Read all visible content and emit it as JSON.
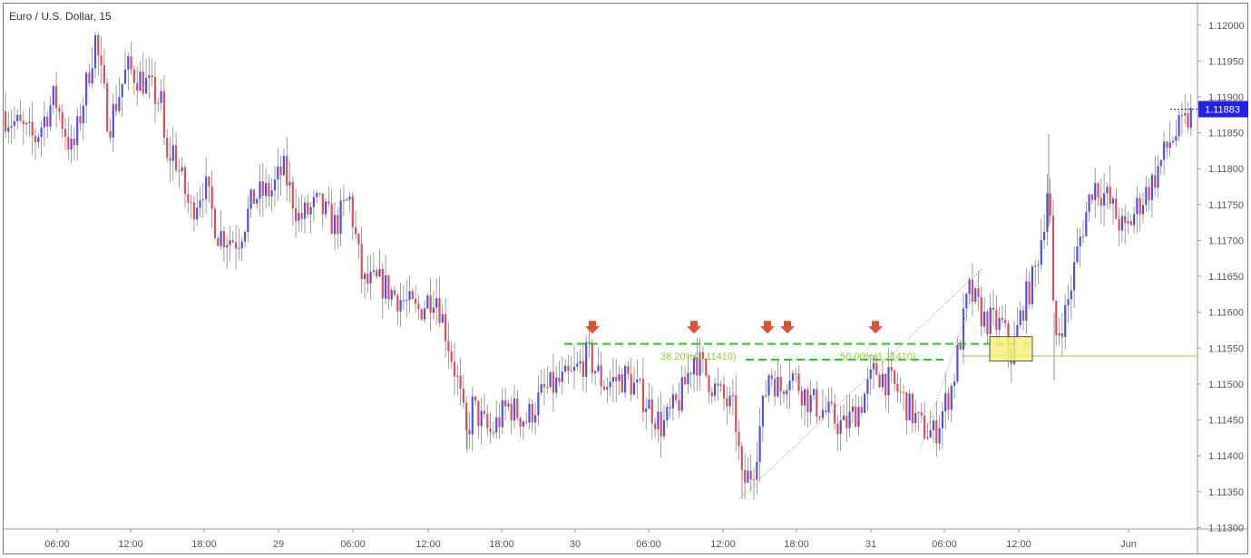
{
  "chart_data": {
    "type": "candlestick",
    "title": "Euro / U.S. Dollar, 15",
    "last_price": "1.11883",
    "y_ticks": [
      "1.12000",
      "1.11950",
      "1.11900",
      "1.11850",
      "1.11800",
      "1.11750",
      "1.11700",
      "1.11650",
      "1.11600",
      "1.11550",
      "1.11500",
      "1.11450",
      "1.11400",
      "1.11350",
      "1.11300"
    ],
    "x_ticks": [
      "06:00",
      "12:00",
      "18:00",
      "29",
      "06:00",
      "12:00",
      "18:00",
      "30",
      "06:00",
      "12:00",
      "18:00",
      "31",
      "06:00",
      "12:00",
      "Jun"
    ],
    "ylim": [
      1.11298,
      1.1203
    ],
    "price_path": [
      [
        0,
        1.1188
      ],
      [
        20,
        1.1186
      ],
      [
        38,
        1.1184
      ],
      [
        60,
        1.119
      ],
      [
        80,
        1.1182
      ],
      [
        105,
        1.1198
      ],
      [
        120,
        1.1186
      ],
      [
        140,
        1.1194
      ],
      [
        160,
        1.1192
      ],
      [
        178,
        1.1189
      ],
      [
        183,
        1.118
      ],
      [
        190,
        1.1183
      ],
      [
        210,
        1.1174
      ],
      [
        225,
        1.1178
      ],
      [
        240,
        1.1171
      ],
      [
        262,
        1.117
      ],
      [
        280,
        1.1176
      ],
      [
        300,
        1.1177
      ],
      [
        312,
        1.118
      ],
      [
        330,
        1.1173
      ],
      [
        350,
        1.1175
      ],
      [
        370,
        1.1172
      ],
      [
        385,
        1.1176
      ],
      [
        400,
        1.1164
      ],
      [
        420,
        1.1164
      ],
      [
        440,
        1.1162
      ],
      [
        460,
        1.116
      ],
      [
        480,
        1.1163
      ],
      [
        492,
        1.1157
      ],
      [
        505,
        1.115
      ],
      [
        515,
        1.1142
      ],
      [
        520,
        1.1147
      ],
      [
        540,
        1.1143
      ],
      [
        560,
        1.1147
      ],
      [
        580,
        1.1145
      ],
      [
        600,
        1.1149
      ],
      [
        630,
        1.1151
      ],
      [
        648,
        1.1154
      ],
      [
        665,
        1.115
      ],
      [
        690,
        1.1151
      ],
      [
        710,
        1.1148
      ],
      [
        730,
        1.1144
      ],
      [
        750,
        1.1148
      ],
      [
        765,
        1.1154
      ],
      [
        790,
        1.1149
      ],
      [
        810,
        1.1146
      ],
      [
        818,
        1.1136
      ],
      [
        830,
        1.1138
      ],
      [
        848,
        1.1152
      ],
      [
        860,
        1.1149
      ],
      [
        870,
        1.1152
      ],
      [
        890,
        1.1148
      ],
      [
        910,
        1.1146
      ],
      [
        930,
        1.1144
      ],
      [
        948,
        1.1147
      ],
      [
        965,
        1.1152
      ],
      [
        990,
        1.1149
      ],
      [
        1015,
        1.1144
      ],
      [
        1030,
        1.1143
      ],
      [
        1050,
        1.115
      ],
      [
        1068,
        1.1163
      ],
      [
        1085,
        1.1159
      ],
      [
        1105,
        1.1158
      ],
      [
        1115,
        1.1154
      ],
      [
        1128,
        1.1161
      ],
      [
        1140,
        1.1165
      ],
      [
        1150,
        1.1172
      ],
      [
        1156,
        1.1179
      ],
      [
        1162,
        1.1156
      ],
      [
        1175,
        1.116
      ],
      [
        1190,
        1.117
      ],
      [
        1205,
        1.1178
      ],
      [
        1220,
        1.1176
      ],
      [
        1240,
        1.1171
      ],
      [
        1255,
        1.1175
      ],
      [
        1270,
        1.1178
      ],
      [
        1290,
        1.1184
      ],
      [
        1305,
        1.1186
      ],
      [
        1318,
        1.11883
      ]
    ],
    "colors": {
      "up": "#4f52e6",
      "down": "#e04e56",
      "resistance": "#22cc22",
      "fib": "#8fcc3a",
      "marker": "#d9533b",
      "zone": "#f5f07a",
      "last_price": "#2320e8"
    },
    "annotations": {
      "resistance_top_price": 1.11556,
      "resistance_low_price": 1.11534,
      "fib_price": 1.11539,
      "fib_labels": [
        "38.20%(1.11410)",
        "50.00%(1.11410)"
      ],
      "arrow_positions": [
        653,
        765,
        846,
        868,
        965
      ]
    }
  }
}
